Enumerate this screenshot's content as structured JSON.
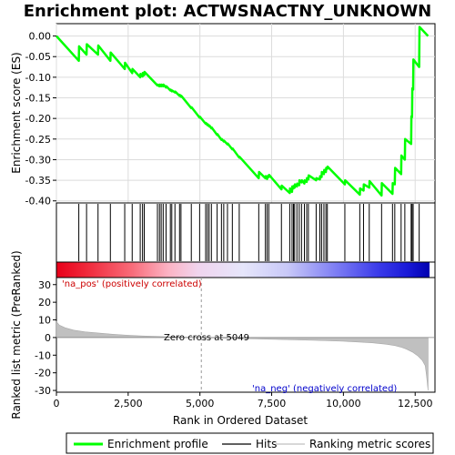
{
  "chart_data": {
    "type": "line",
    "title": "Enrichment plot: ACTWSNACTNY_UNKNOWN",
    "xlabel": "Rank in Ordered Dataset",
    "top_ylabel": "Enrichment score (ES)",
    "bottom_ylabel": "Ranked list metric (PreRanked)",
    "xlim": [
      0,
      13000
    ],
    "x_ticks": [
      0,
      2500,
      5000,
      7500,
      10000,
      12500
    ],
    "x_tick_labels": [
      "0",
      "2,500",
      "5,000",
      "7,500",
      "10,000",
      "12,500"
    ],
    "es_ylim": [
      -0.405,
      0.03
    ],
    "es_ticks": [
      0.0,
      -0.05,
      -0.1,
      -0.15,
      -0.2,
      -0.25,
      -0.3,
      -0.35,
      -0.4
    ],
    "es_tick_labels": [
      "0.00",
      "-0.05",
      "-0.10",
      "-0.15",
      "-0.20",
      "-0.25",
      "-0.30",
      "-0.35",
      "-0.40"
    ],
    "metric_ylim": [
      -31,
      34
    ],
    "metric_ticks": [
      30,
      20,
      10,
      0,
      -10,
      -20,
      -30
    ],
    "metric_tick_labels": [
      "30",
      "20",
      "10",
      "0",
      "-10",
      "-20",
      "-30"
    ],
    "series": [
      {
        "name": "Enrichment profile",
        "color": "#00ff00",
        "x": [
          0,
          780,
          790,
          1050,
          1060,
          1450,
          1460,
          1880,
          1890,
          2380,
          2390,
          2640,
          2650,
          2920,
          2930,
          3000,
          3010,
          3060,
          3070,
          3520,
          3530,
          3590,
          3600,
          3650,
          3660,
          3720,
          3730,
          3820,
          3830,
          3970,
          3980,
          4020,
          4030,
          4130,
          4140,
          4290,
          4300,
          4340,
          4350,
          4700,
          4710,
          4990,
          5000,
          5200,
          5210,
          5260,
          5270,
          5320,
          5330,
          5400,
          5410,
          5600,
          5610,
          5750,
          5760,
          5830,
          5840,
          5960,
          5970,
          6130,
          6140,
          6370,
          6380,
          7050,
          7060,
          7280,
          7290,
          7340,
          7350,
          7400,
          7410,
          7840,
          7850,
          8130,
          8140,
          8210,
          8220,
          8260,
          8270,
          8300,
          8310,
          8380,
          8390,
          8460,
          8470,
          8540,
          8550,
          8640,
          8650,
          8720,
          8730,
          8780,
          8790,
          9050,
          9060,
          9180,
          9190,
          9240,
          9250,
          9320,
          9330,
          9390,
          9400,
          9440,
          9450,
          10050,
          10060,
          10570,
          10580,
          10700,
          10710,
          10900,
          10910,
          11330,
          11340,
          11710,
          11720,
          11790,
          11800,
          12010,
          12020,
          12140,
          12150,
          12360,
          12370,
          12390,
          12400,
          12430,
          12440,
          12640,
          12650,
          12950
        ],
        "y": [
          0.0,
          -0.06,
          -0.025,
          -0.045,
          -0.02,
          -0.045,
          -0.023,
          -0.06,
          -0.04,
          -0.08,
          -0.065,
          -0.09,
          -0.08,
          -0.1,
          -0.092,
          -0.098,
          -0.09,
          -0.095,
          -0.087,
          -0.12,
          -0.118,
          -0.122,
          -0.118,
          -0.122,
          -0.118,
          -0.122,
          -0.118,
          -0.125,
          -0.122,
          -0.132,
          -0.13,
          -0.134,
          -0.132,
          -0.137,
          -0.135,
          -0.145,
          -0.143,
          -0.147,
          -0.145,
          -0.175,
          -0.173,
          -0.198,
          -0.196,
          -0.213,
          -0.211,
          -0.216,
          -0.214,
          -0.219,
          -0.217,
          -0.224,
          -0.222,
          -0.24,
          -0.238,
          -0.252,
          -0.25,
          -0.256,
          -0.254,
          -0.263,
          -0.261,
          -0.275,
          -0.273,
          -0.295,
          -0.293,
          -0.345,
          -0.33,
          -0.345,
          -0.34,
          -0.347,
          -0.34,
          -0.342,
          -0.337,
          -0.372,
          -0.363,
          -0.381,
          -0.37,
          -0.378,
          -0.365,
          -0.37,
          -0.364,
          -0.368,
          -0.36,
          -0.365,
          -0.358,
          -0.362,
          -0.35,
          -0.355,
          -0.35,
          -0.358,
          -0.35,
          -0.354,
          -0.345,
          -0.348,
          -0.338,
          -0.35,
          -0.345,
          -0.348,
          -0.34,
          -0.342,
          -0.33,
          -0.335,
          -0.325,
          -0.33,
          -0.32,
          -0.322,
          -0.317,
          -0.36,
          -0.35,
          -0.385,
          -0.37,
          -0.375,
          -0.36,
          -0.368,
          -0.352,
          -0.387,
          -0.357,
          -0.383,
          -0.357,
          -0.36,
          -0.32,
          -0.335,
          -0.29,
          -0.3,
          -0.25,
          -0.262,
          -0.195,
          -0.197,
          -0.127,
          -0.13,
          -0.057,
          -0.075,
          0.022,
          0.0
        ]
      }
    ],
    "hits_x": [
      780,
      1050,
      1450,
      1880,
      2380,
      2640,
      2920,
      3000,
      3060,
      3520,
      3590,
      3650,
      3720,
      3820,
      3970,
      4020,
      4130,
      4290,
      4340,
      4700,
      4990,
      5200,
      5260,
      5320,
      5400,
      5600,
      5750,
      5830,
      5960,
      6130,
      6370,
      7050,
      7280,
      7340,
      7400,
      7840,
      8130,
      8210,
      8260,
      8300,
      8380,
      8460,
      8540,
      8640,
      8720,
      8780,
      9050,
      9180,
      9240,
      9320,
      9390,
      9440,
      10050,
      10570,
      10700,
      10900,
      11330,
      11710,
      11790,
      12010,
      12140,
      12360,
      12390,
      12430,
      12640
    ],
    "hits_label": "Hits",
    "ranking_label": "Ranking metric scores",
    "metric_curve": {
      "x": [
        0,
        100,
        300,
        600,
        1000,
        1500,
        2000,
        2500,
        3000,
        3500,
        4000,
        4500,
        5049,
        5500,
        6000,
        7000,
        8000,
        9000,
        10000,
        10500,
        11000,
        11500,
        11800,
        12000,
        12200,
        12400,
        12600,
        12750,
        12850,
        12900,
        12950
      ],
      "y": [
        9,
        7,
        5.5,
        4.2,
        3.2,
        2.5,
        1.8,
        1.3,
        0.9,
        0.6,
        0.35,
        0.15,
        0,
        -0.2,
        -0.4,
        -0.8,
        -1.2,
        -1.6,
        -2.1,
        -2.5,
        -3.0,
        -3.8,
        -4.6,
        -5.4,
        -6.6,
        -8.2,
        -10.5,
        -13,
        -16,
        -22,
        -30
      ]
    },
    "positive_label": "'na_pos' (positively correlated)",
    "negative_label": "'na_neg' (negatively correlated)",
    "zero_cross_label": "Zero cross at 5049",
    "zero_cross_x": 5049,
    "colors": {
      "profile": "#00ff00",
      "hits": "#000000",
      "metric_fill": "#c0c0c0",
      "pos_text": "#cc0000",
      "neg_text": "#0000cc"
    }
  },
  "legend": {
    "profile_label": "Enrichment profile",
    "hits_label": "Hits",
    "ranking_label": "Ranking metric scores"
  }
}
